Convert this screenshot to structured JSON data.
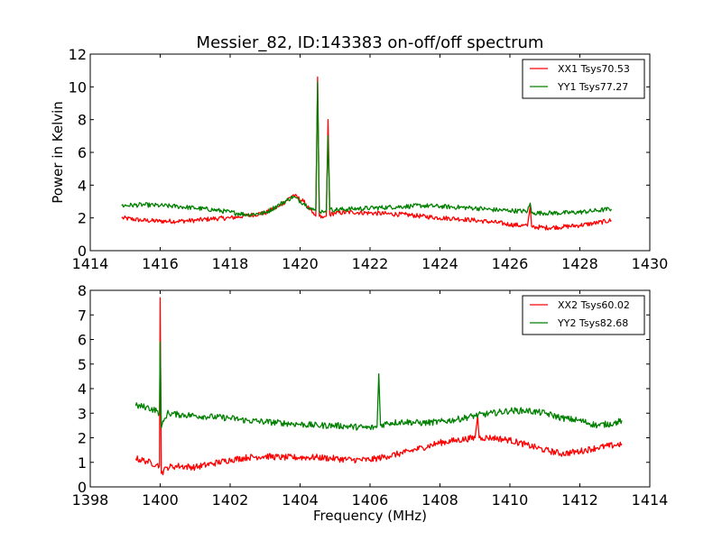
{
  "figure": {
    "title": "Messier_82, ID:143383 on-off/off spectrum"
  },
  "chart_data": [
    {
      "type": "line",
      "title": "Messier_82, ID:143383 on-off/off spectrum",
      "xlabel": "",
      "ylabel": "Power in Kelvin",
      "xlim": [
        1414,
        1430
      ],
      "ylim": [
        0,
        12
      ],
      "xticks": [
        "1414",
        "1416",
        "1418",
        "1420",
        "1422",
        "1424",
        "1426",
        "1428",
        "1430"
      ],
      "yticks": [
        "0",
        "2",
        "4",
        "6",
        "8",
        "10",
        "12"
      ],
      "grid": false,
      "legend_position": "top-right",
      "series": [
        {
          "name": "XX1 Tsys70.53",
          "color": "#ff0000",
          "x": [
            1414.9,
            1415.5,
            1416.0,
            1416.5,
            1417.0,
            1417.5,
            1418.0,
            1418.5,
            1419.0,
            1419.4,
            1419.8,
            1420.1,
            1420.35,
            1420.45,
            1420.5,
            1420.55,
            1420.65,
            1420.75,
            1420.8,
            1420.85,
            1421.0,
            1421.5,
            1422.0,
            1422.5,
            1423.0,
            1423.5,
            1424.0,
            1424.5,
            1425.0,
            1425.5,
            1426.0,
            1426.5,
            1426.58,
            1426.62,
            1426.7,
            1427.0,
            1427.5,
            1428.0,
            1428.5,
            1428.9
          ],
          "y": [
            2.0,
            1.85,
            1.8,
            1.8,
            1.85,
            1.95,
            2.0,
            2.15,
            2.3,
            2.7,
            3.4,
            3.0,
            2.3,
            2.1,
            10.6,
            2.1,
            2.0,
            2.1,
            8.0,
            2.2,
            2.3,
            2.35,
            2.3,
            2.25,
            2.2,
            2.1,
            2.0,
            1.95,
            1.85,
            1.75,
            1.6,
            1.5,
            2.7,
            1.5,
            1.45,
            1.4,
            1.45,
            1.55,
            1.7,
            1.85
          ]
        },
        {
          "name": "YY1 Tsys77.27",
          "color": "#008000",
          "x": [
            1414.9,
            1415.5,
            1416.0,
            1416.5,
            1417.0,
            1417.5,
            1418.0,
            1418.5,
            1419.0,
            1419.4,
            1419.8,
            1420.1,
            1420.35,
            1420.45,
            1420.5,
            1420.55,
            1420.65,
            1420.75,
            1420.8,
            1420.85,
            1421.0,
            1421.5,
            1422.0,
            1422.5,
            1423.0,
            1423.5,
            1424.0,
            1424.5,
            1425.0,
            1425.5,
            1426.0,
            1426.5,
            1426.58,
            1426.62,
            1426.7,
            1427.0,
            1427.5,
            1428.0,
            1428.5,
            1428.9
          ],
          "y": [
            2.75,
            2.8,
            2.75,
            2.7,
            2.6,
            2.5,
            2.35,
            2.2,
            2.3,
            2.8,
            3.3,
            2.9,
            2.5,
            2.45,
            10.3,
            2.4,
            2.4,
            2.5,
            7.0,
            2.5,
            2.5,
            2.55,
            2.6,
            2.65,
            2.7,
            2.75,
            2.7,
            2.65,
            2.6,
            2.5,
            2.45,
            2.4,
            2.9,
            2.3,
            2.3,
            2.3,
            2.3,
            2.35,
            2.45,
            2.55
          ]
        }
      ]
    },
    {
      "type": "line",
      "title": "",
      "xlabel": "Frequency (MHz)",
      "ylabel": "",
      "xlim": [
        1398,
        1414
      ],
      "ylim": [
        0,
        8
      ],
      "xticks": [
        "1398",
        "1400",
        "1402",
        "1404",
        "1406",
        "1408",
        "1410",
        "1412",
        "1414"
      ],
      "yticks": [
        "0",
        "1",
        "2",
        "3",
        "4",
        "5",
        "6",
        "7",
        "8"
      ],
      "grid": false,
      "legend_position": "top-right",
      "series": [
        {
          "name": "XX2 Tsys60.02",
          "color": "#ff0000",
          "x": [
            1399.3,
            1399.6,
            1399.9,
            1399.98,
            1400.0,
            1400.03,
            1400.2,
            1400.5,
            1401.0,
            1401.5,
            1402.0,
            1402.5,
            1403.0,
            1403.5,
            1404.0,
            1404.5,
            1405.0,
            1405.5,
            1406.0,
            1406.5,
            1407.0,
            1407.5,
            1408.0,
            1408.5,
            1409.0,
            1409.08,
            1409.12,
            1409.2,
            1409.5,
            1410.0,
            1410.5,
            1411.0,
            1411.5,
            1412.0,
            1412.5,
            1413.0,
            1413.2
          ],
          "y": [
            1.15,
            1.05,
            0.9,
            0.85,
            7.7,
            0.55,
            0.8,
            0.85,
            0.8,
            0.95,
            1.1,
            1.2,
            1.25,
            1.2,
            1.2,
            1.2,
            1.15,
            1.1,
            1.1,
            1.25,
            1.4,
            1.6,
            1.8,
            1.9,
            2.0,
            2.9,
            2.0,
            2.0,
            2.0,
            1.9,
            1.7,
            1.5,
            1.35,
            1.45,
            1.6,
            1.7,
            1.75
          ]
        },
        {
          "name": "YY2 Tsys82.68",
          "color": "#008000",
          "x": [
            1399.3,
            1399.6,
            1399.9,
            1399.98,
            1400.0,
            1400.03,
            1400.2,
            1400.5,
            1401.0,
            1401.5,
            1402.0,
            1402.5,
            1403.0,
            1403.5,
            1404.0,
            1404.5,
            1405.0,
            1405.5,
            1406.0,
            1406.2,
            1406.25,
            1406.3,
            1406.5,
            1407.0,
            1407.5,
            1408.0,
            1408.5,
            1409.0,
            1409.5,
            1410.0,
            1410.5,
            1411.0,
            1411.5,
            1412.0,
            1412.5,
            1413.0,
            1413.2
          ],
          "y": [
            3.3,
            3.25,
            3.1,
            3.0,
            5.9,
            2.4,
            3.0,
            2.95,
            2.9,
            2.85,
            2.8,
            2.7,
            2.65,
            2.6,
            2.55,
            2.5,
            2.5,
            2.45,
            2.4,
            2.45,
            4.6,
            2.5,
            2.6,
            2.65,
            2.6,
            2.65,
            2.75,
            2.9,
            3.0,
            3.1,
            3.1,
            3.0,
            2.8,
            2.7,
            2.5,
            2.6,
            2.7
          ]
        }
      ]
    }
  ]
}
